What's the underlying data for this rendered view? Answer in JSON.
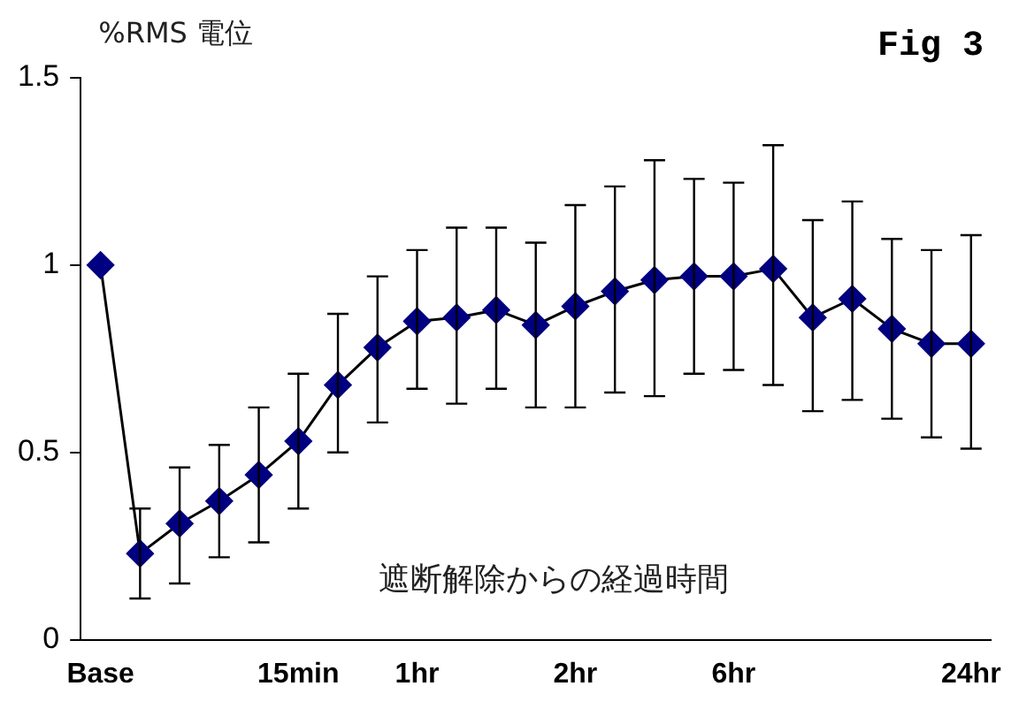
{
  "chart_data": {
    "type": "line",
    "ylabel": "%RMS 電位",
    "xlabel": "遮断解除からの経過時間",
    "annotations": [
      "Fig 3"
    ],
    "categories": [
      "Base",
      null,
      null,
      null,
      null,
      "15min",
      null,
      null,
      "1hr",
      null,
      null,
      null,
      "2hr",
      null,
      null,
      null,
      "6hr",
      null,
      null,
      null,
      null,
      null,
      "24hr"
    ],
    "series": [
      {
        "color": "#000080",
        "values": [
          1.0,
          0.23,
          0.31,
          0.37,
          0.44,
          0.53,
          0.68,
          0.78,
          0.85,
          0.86,
          0.88,
          0.84,
          0.89,
          0.93,
          0.96,
          0.97,
          0.97,
          0.99,
          0.86,
          0.91,
          0.83,
          0.79,
          0.79
        ],
        "errors": [
          null,
          [
            0.11,
            0.35
          ],
          [
            0.15,
            0.46
          ],
          [
            0.22,
            0.52
          ],
          [
            0.26,
            0.62
          ],
          [
            0.35,
            0.71
          ],
          [
            0.5,
            0.87
          ],
          [
            0.58,
            0.97
          ],
          [
            0.67,
            1.04
          ],
          [
            0.63,
            1.1
          ],
          [
            0.67,
            1.1
          ],
          [
            0.62,
            1.06
          ],
          [
            0.62,
            1.16
          ],
          [
            0.66,
            1.21
          ],
          [
            0.65,
            1.28
          ],
          [
            0.71,
            1.23
          ],
          [
            0.72,
            1.22
          ],
          [
            0.68,
            1.32
          ],
          [
            0.61,
            1.12
          ],
          [
            0.64,
            1.17
          ],
          [
            0.59,
            1.07
          ],
          [
            0.54,
            1.04
          ],
          [
            0.51,
            1.08
          ]
        ]
      }
    ],
    "ylim": [
      0,
      1.5
    ],
    "yticks": [
      0,
      0.5,
      1,
      1.5
    ],
    "grid": false,
    "legend": false,
    "marker": "diamond",
    "line_style": "solid"
  }
}
